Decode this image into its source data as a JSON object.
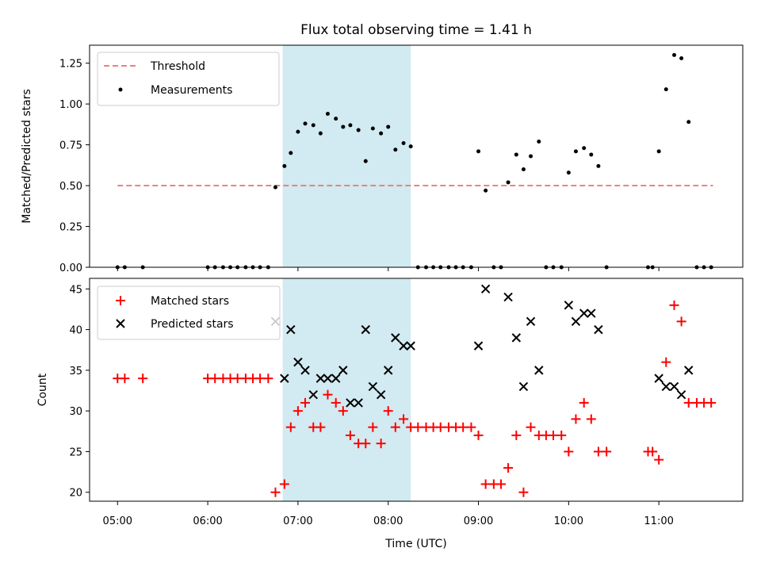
{
  "chart_data": {
    "title": "Flux total observing time = 1.41 h",
    "xlabel": "Time (UTC)",
    "x_tick_labels": [
      "05:00",
      "06:00",
      "07:00",
      "08:00",
      "09:00",
      "10:00",
      "11:00"
    ],
    "x_tick_hours": [
      5,
      6,
      7,
      8,
      9,
      10,
      11
    ],
    "xlim_hours": [
      4.69,
      11.93
    ],
    "highlight_band_hours": [
      6.83,
      8.25
    ],
    "colors": {
      "band": "#add8e6",
      "threshold": "#f08080",
      "measurements": "#000000",
      "matched": "#ff0000",
      "predicted": "#000000"
    },
    "panels": [
      {
        "type": "scatter",
        "ylabel": "Matched/Predicted stars",
        "ylim": [
          0,
          1.36
        ],
        "y_ticks": [
          0.0,
          0.25,
          0.5,
          0.75,
          1.0,
          1.25
        ],
        "y_tick_labels": [
          "0.00",
          "0.25",
          "0.50",
          "0.75",
          "1.00",
          "1.25"
        ],
        "legend": [
          "Threshold",
          "Measurements"
        ],
        "threshold": {
          "name": "Threshold",
          "y": 0.5,
          "x_range_hours": [
            5.0,
            11.6
          ]
        },
        "series": [
          {
            "name": "Measurements",
            "points": [
              [
                5.0,
                0
              ],
              [
                5.08,
                0
              ],
              [
                5.28,
                0
              ],
              [
                6.0,
                0
              ],
              [
                6.08,
                0
              ],
              [
                6.17,
                0
              ],
              [
                6.25,
                0
              ],
              [
                6.33,
                0
              ],
              [
                6.42,
                0
              ],
              [
                6.5,
                0
              ],
              [
                6.58,
                0
              ],
              [
                6.67,
                0
              ],
              [
                6.75,
                0.49
              ],
              [
                6.85,
                0.62
              ],
              [
                6.92,
                0.7
              ],
              [
                7.0,
                0.83
              ],
              [
                7.08,
                0.88
              ],
              [
                7.17,
                0.87
              ],
              [
                7.25,
                0.82
              ],
              [
                7.33,
                0.94
              ],
              [
                7.42,
                0.91
              ],
              [
                7.5,
                0.86
              ],
              [
                7.58,
                0.87
              ],
              [
                7.67,
                0.84
              ],
              [
                7.75,
                0.65
              ],
              [
                7.83,
                0.85
              ],
              [
                7.92,
                0.82
              ],
              [
                8.0,
                0.86
              ],
              [
                8.08,
                0.72
              ],
              [
                8.17,
                0.76
              ],
              [
                8.25,
                0.74
              ],
              [
                8.33,
                0
              ],
              [
                8.42,
                0
              ],
              [
                8.5,
                0
              ],
              [
                8.58,
                0
              ],
              [
                8.67,
                0
              ],
              [
                8.75,
                0
              ],
              [
                8.83,
                0
              ],
              [
                8.92,
                0
              ],
              [
                9.0,
                0.71
              ],
              [
                9.08,
                0.47
              ],
              [
                9.17,
                0
              ],
              [
                9.25,
                0
              ],
              [
                9.33,
                0.52
              ],
              [
                9.42,
                0.69
              ],
              [
                9.5,
                0.6
              ],
              [
                9.58,
                0.68
              ],
              [
                9.67,
                0.77
              ],
              [
                9.75,
                0
              ],
              [
                9.83,
                0
              ],
              [
                9.92,
                0
              ],
              [
                10.0,
                0.58
              ],
              [
                10.08,
                0.71
              ],
              [
                10.17,
                0.73
              ],
              [
                10.25,
                0.69
              ],
              [
                10.33,
                0.62
              ],
              [
                10.42,
                0
              ],
              [
                10.88,
                0
              ],
              [
                10.93,
                0
              ],
              [
                11.0,
                0.71
              ],
              [
                11.08,
                1.09
              ],
              [
                11.17,
                1.3
              ],
              [
                11.25,
                1.28
              ],
              [
                11.33,
                0.89
              ],
              [
                11.42,
                0
              ],
              [
                11.5,
                0
              ],
              [
                11.58,
                0
              ]
            ]
          }
        ]
      },
      {
        "type": "scatter",
        "ylabel": "Count",
        "ylim": [
          18.9,
          46.3
        ],
        "y_ticks": [
          20,
          25,
          30,
          35,
          40,
          45
        ],
        "y_tick_labels": [
          "20",
          "25",
          "30",
          "35",
          "40",
          "45"
        ],
        "legend": [
          "Matched stars",
          "Predicted stars"
        ],
        "series": [
          {
            "name": "Matched stars",
            "marker": "plus",
            "points": [
              [
                5.0,
                34
              ],
              [
                5.08,
                34
              ],
              [
                5.28,
                34
              ],
              [
                6.0,
                34
              ],
              [
                6.08,
                34
              ],
              [
                6.17,
                34
              ],
              [
                6.25,
                34
              ],
              [
                6.33,
                34
              ],
              [
                6.42,
                34
              ],
              [
                6.5,
                34
              ],
              [
                6.58,
                34
              ],
              [
                6.67,
                34
              ],
              [
                6.75,
                20
              ],
              [
                6.85,
                21
              ],
              [
                6.92,
                28
              ],
              [
                7.0,
                30
              ],
              [
                7.08,
                31
              ],
              [
                7.17,
                28
              ],
              [
                7.25,
                28
              ],
              [
                7.33,
                32
              ],
              [
                7.42,
                31
              ],
              [
                7.5,
                30
              ],
              [
                7.58,
                27
              ],
              [
                7.67,
                26
              ],
              [
                7.75,
                26
              ],
              [
                7.83,
                28
              ],
              [
                7.92,
                26
              ],
              [
                8.0,
                30
              ],
              [
                8.08,
                28
              ],
              [
                8.17,
                29
              ],
              [
                8.25,
                28
              ],
              [
                8.33,
                28
              ],
              [
                8.42,
                28
              ],
              [
                8.5,
                28
              ],
              [
                8.58,
                28
              ],
              [
                8.67,
                28
              ],
              [
                8.75,
                28
              ],
              [
                8.83,
                28
              ],
              [
                8.92,
                28
              ],
              [
                9.0,
                27
              ],
              [
                9.08,
                21
              ],
              [
                9.17,
                21
              ],
              [
                9.25,
                21
              ],
              [
                9.33,
                23
              ],
              [
                9.42,
                27
              ],
              [
                9.5,
                20
              ],
              [
                9.58,
                28
              ],
              [
                9.67,
                27
              ],
              [
                9.75,
                27
              ],
              [
                9.83,
                27
              ],
              [
                9.92,
                27
              ],
              [
                10.0,
                25
              ],
              [
                10.08,
                29
              ],
              [
                10.17,
                31
              ],
              [
                10.25,
                29
              ],
              [
                10.33,
                25
              ],
              [
                10.42,
                25
              ],
              [
                10.88,
                25
              ],
              [
                10.93,
                25
              ],
              [
                11.0,
                24
              ],
              [
                11.08,
                36
              ],
              [
                11.17,
                43
              ],
              [
                11.25,
                41
              ],
              [
                11.33,
                31
              ],
              [
                11.42,
                31
              ],
              [
                11.5,
                31
              ],
              [
                11.58,
                31
              ]
            ]
          },
          {
            "name": "Predicted stars",
            "marker": "x",
            "points": [
              [
                6.75,
                41
              ],
              [
                6.85,
                34
              ],
              [
                6.92,
                40
              ],
              [
                7.0,
                36
              ],
              [
                7.08,
                35
              ],
              [
                7.17,
                32
              ],
              [
                7.25,
                34
              ],
              [
                7.33,
                34
              ],
              [
                7.42,
                34
              ],
              [
                7.5,
                35
              ],
              [
                7.58,
                31
              ],
              [
                7.67,
                31
              ],
              [
                7.75,
                40
              ],
              [
                7.83,
                33
              ],
              [
                7.92,
                32
              ],
              [
                8.0,
                35
              ],
              [
                8.08,
                39
              ],
              [
                8.17,
                38
              ],
              [
                8.25,
                38
              ],
              [
                9.0,
                38
              ],
              [
                9.08,
                45
              ],
              [
                9.33,
                44
              ],
              [
                9.42,
                39
              ],
              [
                9.5,
                33
              ],
              [
                9.58,
                41
              ],
              [
                9.67,
                35
              ],
              [
                10.0,
                43
              ],
              [
                10.08,
                41
              ],
              [
                10.17,
                42
              ],
              [
                10.25,
                42
              ],
              [
                10.33,
                40
              ],
              [
                11.0,
                34
              ],
              [
                11.08,
                33
              ],
              [
                11.17,
                33
              ],
              [
                11.25,
                32
              ],
              [
                11.33,
                35
              ]
            ]
          }
        ]
      }
    ]
  }
}
